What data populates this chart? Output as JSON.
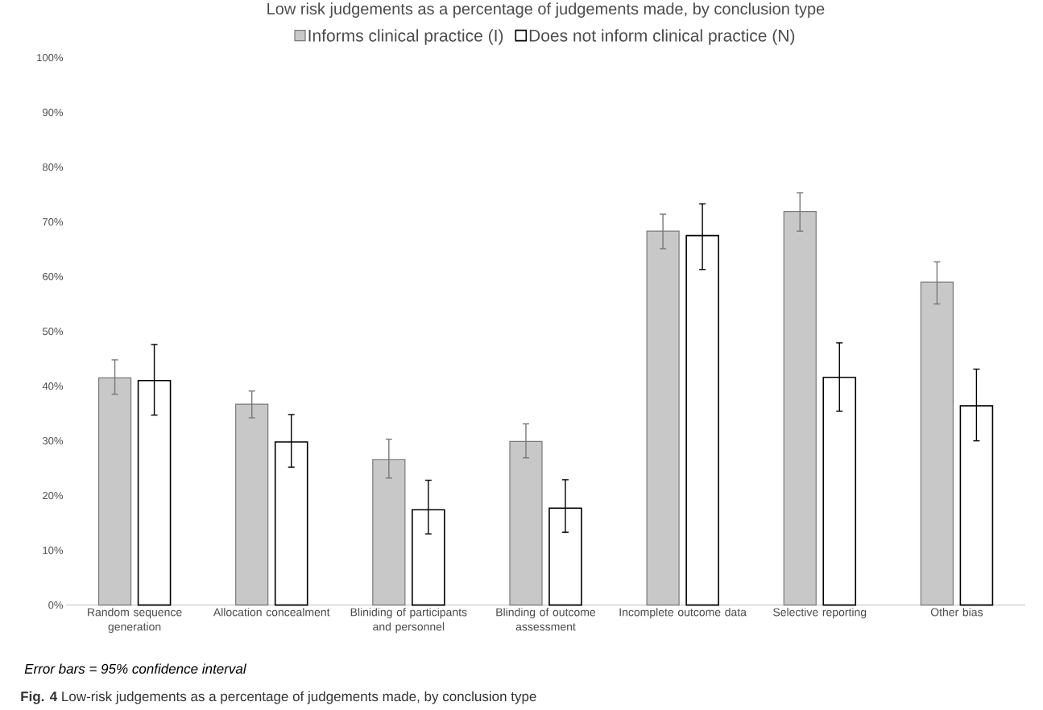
{
  "chart_data": {
    "type": "bar",
    "title": "Low risk judgements as a percentage of judgements made, by conclusion type",
    "categories": [
      "Random sequence generation",
      "Allocation concealment",
      "Bliniding of participants and personnel",
      "Blinding of outcome assessment",
      "Incomplete outcome data",
      "Selective reporting",
      "Other bias"
    ],
    "series": [
      {
        "name": "Informs clinical practice (I)",
        "color": "#c8c8c8",
        "values": [
          41.5,
          36.7,
          26.6,
          29.9,
          68.3,
          71.9,
          59.0
        ],
        "errors": [
          [
            38.5,
            44.8
          ],
          [
            34.2,
            39.1
          ],
          [
            23.2,
            30.3
          ],
          [
            26.9,
            33.1
          ],
          [
            65.1,
            71.4
          ],
          [
            68.3,
            75.3
          ],
          [
            55.0,
            62.7
          ]
        ]
      },
      {
        "name": "Does not inform clinical practice (N)",
        "color": "#000000",
        "values": [
          41.0,
          29.8,
          17.4,
          17.7,
          67.5,
          41.6,
          36.4
        ],
        "errors": [
          [
            34.7,
            47.6
          ],
          [
            25.2,
            34.8
          ],
          [
            13.0,
            22.8
          ],
          [
            13.3,
            22.9
          ],
          [
            61.3,
            73.3
          ],
          [
            35.4,
            47.9
          ],
          [
            30.0,
            43.1
          ]
        ]
      }
    ],
    "ylim": [
      0,
      100
    ],
    "yticks": [
      {
        "value": 0,
        "label": "0%"
      },
      {
        "value": 10,
        "label": "10%"
      },
      {
        "value": 20,
        "label": "20%"
      },
      {
        "value": 30,
        "label": "30%"
      },
      {
        "value": 40,
        "label": "40%"
      },
      {
        "value": 50,
        "label": "50%"
      },
      {
        "value": 60,
        "label": "60%"
      },
      {
        "value": 70,
        "label": "70%"
      },
      {
        "value": 80,
        "label": "80%"
      },
      {
        "value": 90,
        "label": "90%"
      },
      {
        "value": 100,
        "label": "100%"
      }
    ],
    "legend": "top",
    "annotations": [
      "Error bars = 95% confidence interval",
      "**Fig. 4** Low-risk judgements as a percentage of judgements made, by conclusion type"
    ]
  }
}
